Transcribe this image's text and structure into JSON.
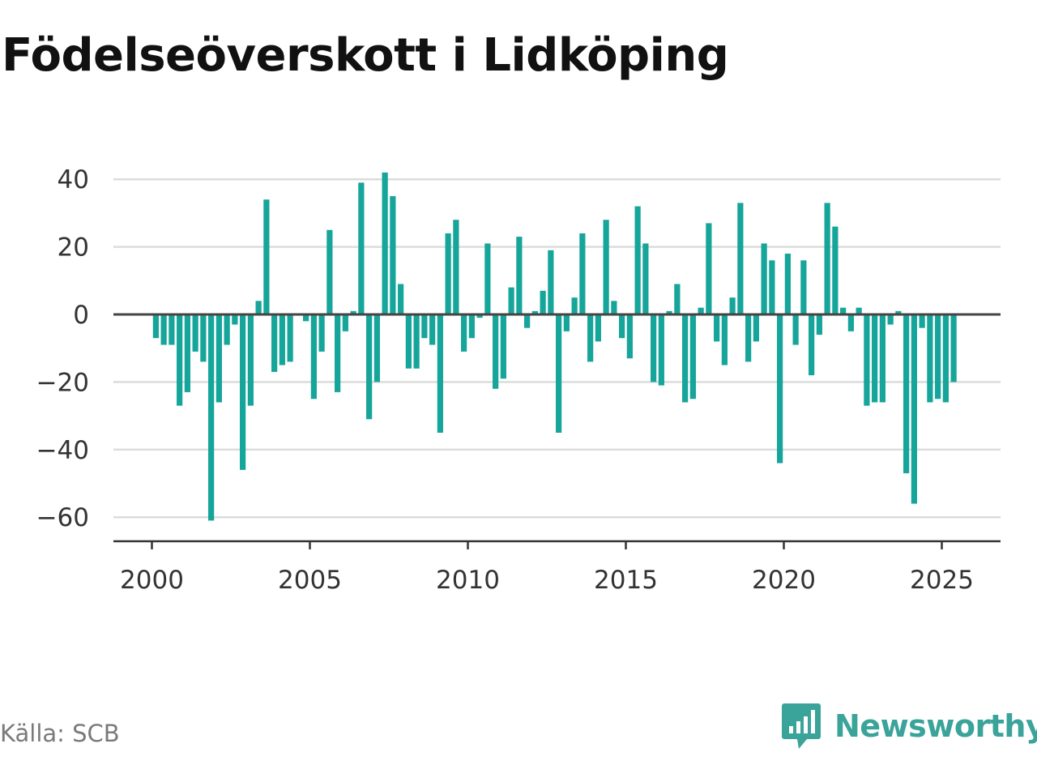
{
  "title": "Födelseöverskott i Lidköping",
  "source": "Källa: SCB",
  "brand": "Newsworthy",
  "colors": {
    "bar": "#16a59a",
    "brand": "#3aa39a"
  },
  "icons": {
    "brand_logo": "bar-chart-speech-bubble-icon"
  },
  "chart_data": {
    "type": "bar",
    "title": "Födelseöverskott i Lidköping",
    "xlabel": "",
    "ylabel": "",
    "grid": true,
    "x_start": 2000.125,
    "x_step": 0.25,
    "x_ticks": [
      2000,
      2005,
      2010,
      2015,
      2020,
      2025
    ],
    "y_ticks": [
      40,
      20,
      0,
      -20,
      -40,
      -60
    ],
    "y_tick_labels": [
      "40",
      "20",
      "0",
      "−20",
      "−40",
      "−60"
    ],
    "ylim": [
      -70,
      42
    ],
    "values": [
      -7,
      -9,
      -9,
      -27,
      -23,
      -11,
      -14,
      -61,
      -26,
      -9,
      -3,
      -46,
      -27,
      4,
      34,
      -17,
      -15,
      -14,
      0,
      -2,
      -25,
      -11,
      25,
      -23,
      -5,
      1,
      39,
      -31,
      -20,
      42,
      35,
      9,
      -16,
      -16,
      -7,
      -9,
      -35,
      24,
      28,
      -11,
      -7,
      -1,
      21,
      -22,
      -19,
      8,
      23,
      -4,
      1,
      7,
      19,
      -35,
      -5,
      5,
      24,
      -14,
      -8,
      28,
      4,
      -7,
      -13,
      32,
      21,
      -20,
      -21,
      1,
      9,
      -26,
      -25,
      2,
      27,
      -8,
      -15,
      5,
      33,
      -14,
      -8,
      21,
      16,
      -44,
      18,
      -9,
      16,
      -18,
      -6,
      33,
      26,
      2,
      -5,
      2,
      -27,
      -26,
      -26,
      -3,
      1,
      -47,
      -56,
      -4,
      -26,
      -25,
      -26,
      -20
    ]
  }
}
